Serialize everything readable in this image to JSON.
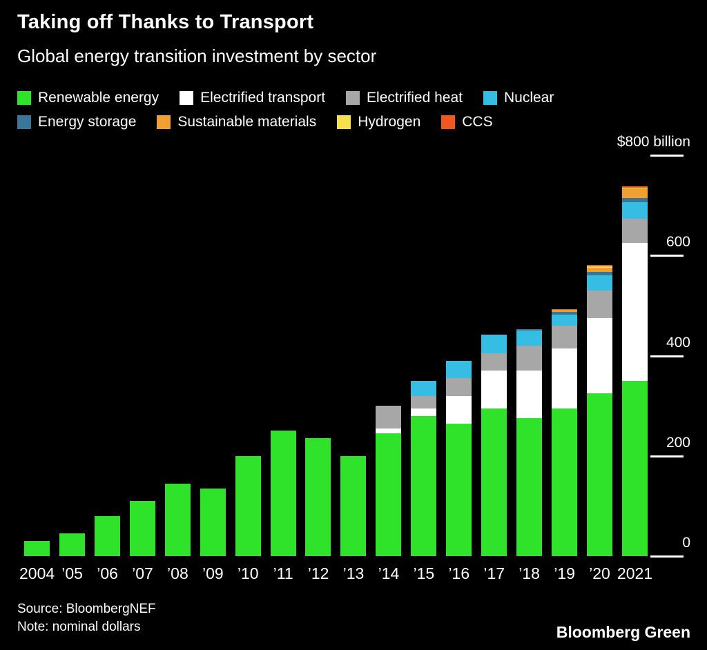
{
  "header": {
    "title": "Taking off Thanks to Transport",
    "subtitle": "Global energy transition investment by sector"
  },
  "axis": {
    "y_ticks": [
      {
        "value": 800,
        "label": "$800 billion"
      },
      {
        "value": 600,
        "label": "600"
      },
      {
        "value": 400,
        "label": "400"
      },
      {
        "value": 200,
        "label": "200"
      },
      {
        "value": 0,
        "label": "0"
      }
    ]
  },
  "chart_data": {
    "type": "bar",
    "stacked": true,
    "title": "Taking off Thanks to Transport",
    "subtitle": "Global energy transition investment by sector",
    "unit": "billion US dollars (nominal)",
    "ylim": [
      0,
      800
    ],
    "grid": false,
    "legend_position": "top",
    "categories": [
      "2004",
      "’05",
      "’06",
      "’07",
      "’08",
      "’09",
      "’10",
      "’11",
      "’12",
      "’13",
      "’14",
      "’15",
      "’16",
      "’17",
      "’18",
      "’19",
      "’20",
      "2021"
    ],
    "series": [
      {
        "name": "Renewable energy",
        "color": "#2ee329",
        "values": [
          30,
          45,
          80,
          110,
          145,
          135,
          200,
          250,
          235,
          200,
          245,
          280,
          265,
          295,
          275,
          295,
          325,
          350
        ]
      },
      {
        "name": "Electrified transport",
        "color": "#ffffff",
        "values": [
          0,
          0,
          0,
          0,
          0,
          0,
          0,
          0,
          0,
          0,
          10,
          15,
          55,
          75,
          95,
          120,
          150,
          275
        ]
      },
      {
        "name": "Electrified heat",
        "color": "#a7a7a7",
        "values": [
          0,
          0,
          0,
          0,
          0,
          0,
          0,
          0,
          0,
          0,
          45,
          25,
          35,
          35,
          50,
          45,
          55,
          48
        ]
      },
      {
        "name": "Nuclear",
        "color": "#35bde4",
        "values": [
          0,
          0,
          0,
          0,
          0,
          0,
          0,
          0,
          0,
          0,
          0,
          30,
          35,
          37,
          30,
          22,
          30,
          34
        ]
      },
      {
        "name": "Energy storage",
        "color": "#3a7697",
        "values": [
          0,
          0,
          0,
          0,
          0,
          0,
          0,
          0,
          0,
          0,
          0,
          0,
          0,
          0,
          3,
          5,
          8,
          7
        ]
      },
      {
        "name": "Sustainable materials",
        "color": "#f0a030",
        "values": [
          0,
          0,
          0,
          0,
          0,
          0,
          0,
          0,
          0,
          0,
          0,
          0,
          0,
          0,
          0,
          4,
          8,
          20
        ]
      },
      {
        "name": "Hydrogen",
        "color": "#f6e14d",
        "values": [
          0,
          0,
          0,
          0,
          0,
          0,
          0,
          0,
          0,
          0,
          0,
          0,
          0,
          0,
          0,
          1,
          2,
          2
        ]
      },
      {
        "name": "CCS",
        "color": "#f2571f",
        "values": [
          0,
          0,
          0,
          0,
          0,
          0,
          0,
          0,
          0,
          0,
          0,
          0,
          0,
          0,
          0,
          1,
          3,
          2
        ]
      }
    ]
  },
  "footer": {
    "source": "Source: BloombergNEF",
    "note": "Note: nominal dollars",
    "brand": "Bloomberg Green"
  }
}
